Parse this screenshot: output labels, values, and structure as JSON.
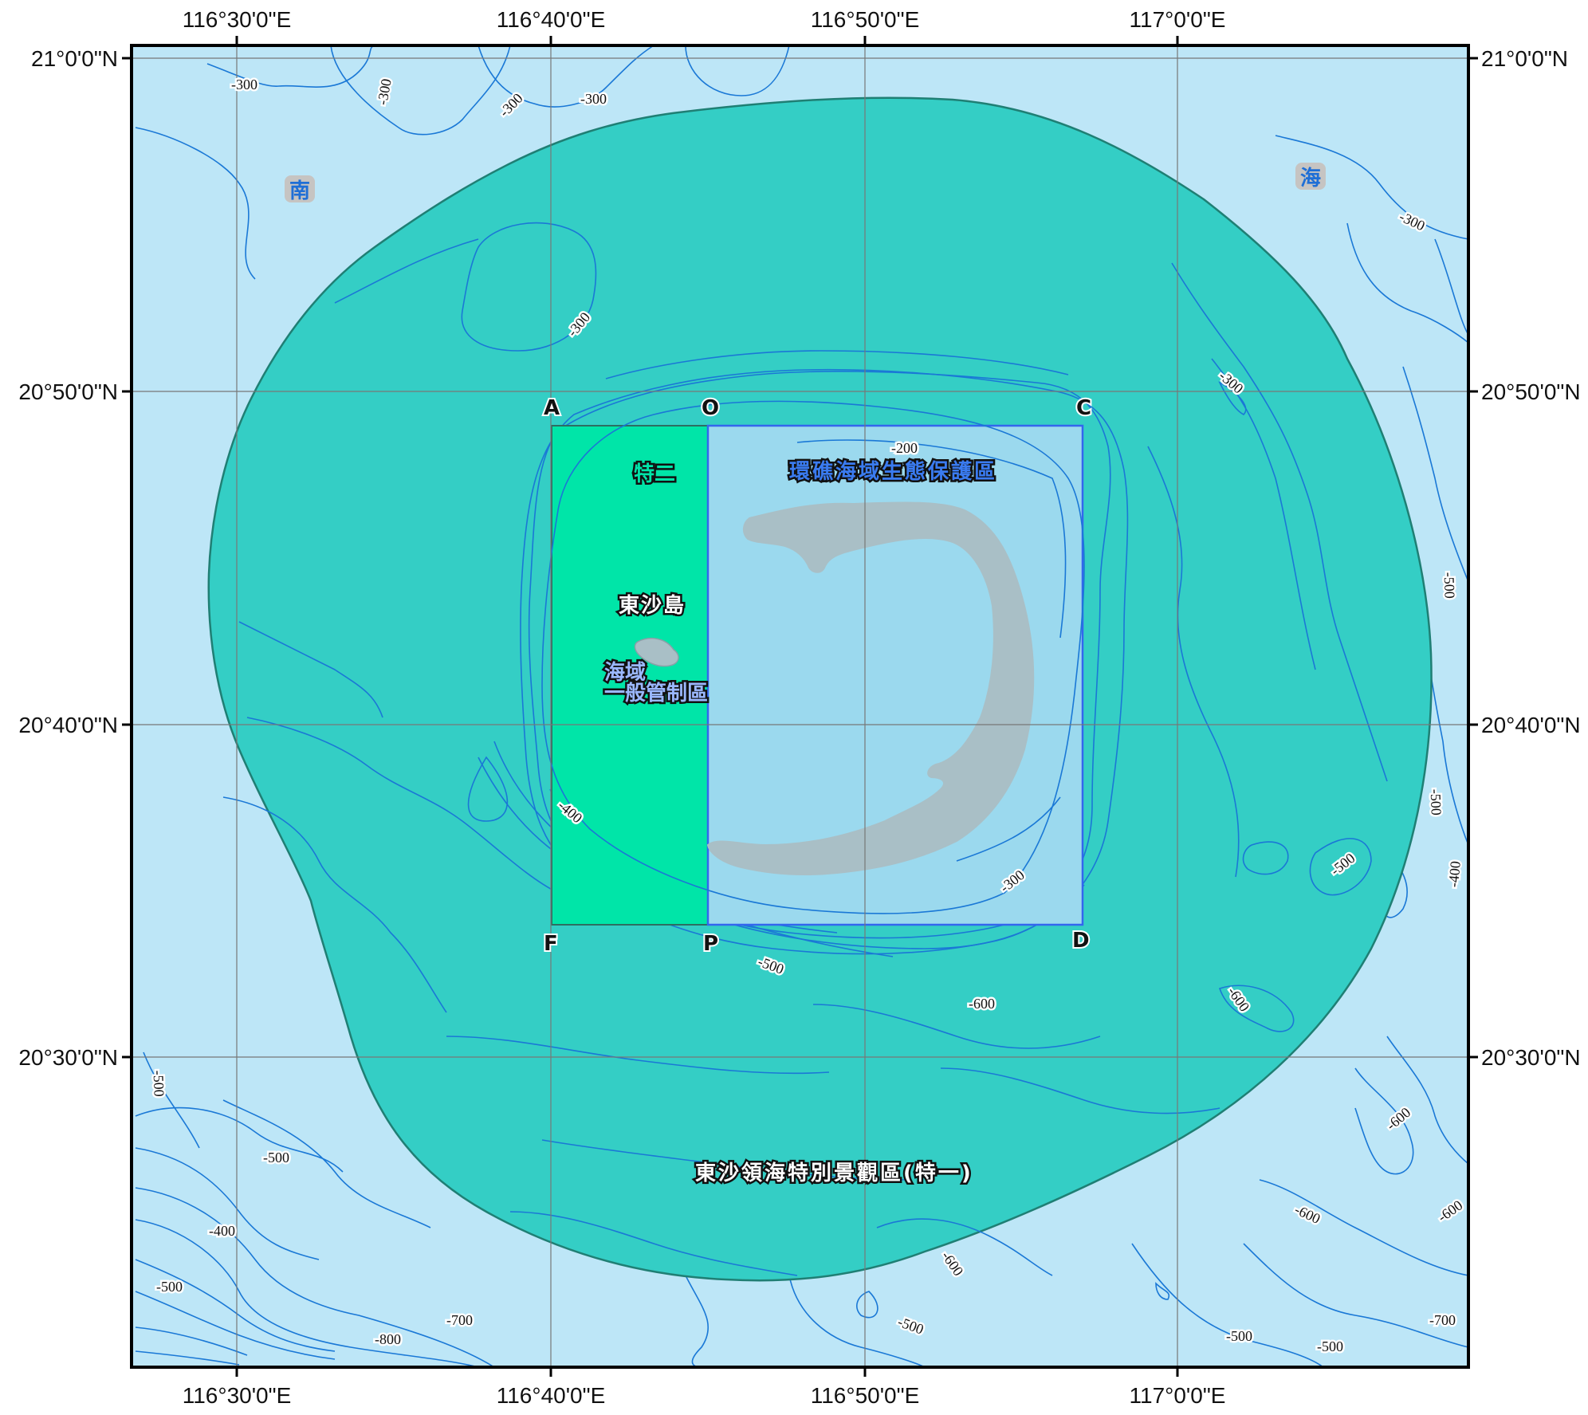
{
  "map": {
    "colors": {
      "sea": "#bde6f7",
      "special_area": "#34cec5",
      "special_area_border": "#1f7f74",
      "te_er": "#00e5a8",
      "reef_zone": "#9bd9ee",
      "reef_border": "#3366ee",
      "reef_land": "#a9bfc6",
      "contour": "#1a78d6",
      "grid": "#777777",
      "frame": "#000000"
    },
    "longitude_labels": [
      "116°30'0\"E",
      "116°40'0\"E",
      "116°50'0\"E",
      "117°0'0\"E"
    ],
    "latitude_labels": [
      "21°0'0\"N",
      "20°50'0\"N",
      "20°40'0\"N",
      "20°30'0\"N"
    ],
    "point_labels": {
      "A": "A",
      "O": "O",
      "C": "C",
      "F": "F",
      "P": "P",
      "D": "D"
    },
    "zones": {
      "te_yi": "東沙領海特別景觀區(特一)",
      "te_er": "特二",
      "reef": "環礁海域生態保護區",
      "island": "東沙島",
      "general_1": "海域",
      "general_2": "一般管制區"
    },
    "sea_name": {
      "left": "南",
      "right": "海"
    },
    "contour_labels": [
      "-300",
      "-300",
      "-300",
      "-300",
      "-300",
      "-300",
      "-300",
      "-200",
      "-300",
      "-500",
      "-500",
      "-400",
      "-500",
      "-400",
      "-600",
      "-500",
      "-600",
      "-600",
      "-600",
      "-600",
      "-700",
      "-500",
      "-500",
      "-400",
      "-500",
      "-500",
      "-800",
      "-700",
      "-600",
      "-500",
      "-500"
    ]
  }
}
